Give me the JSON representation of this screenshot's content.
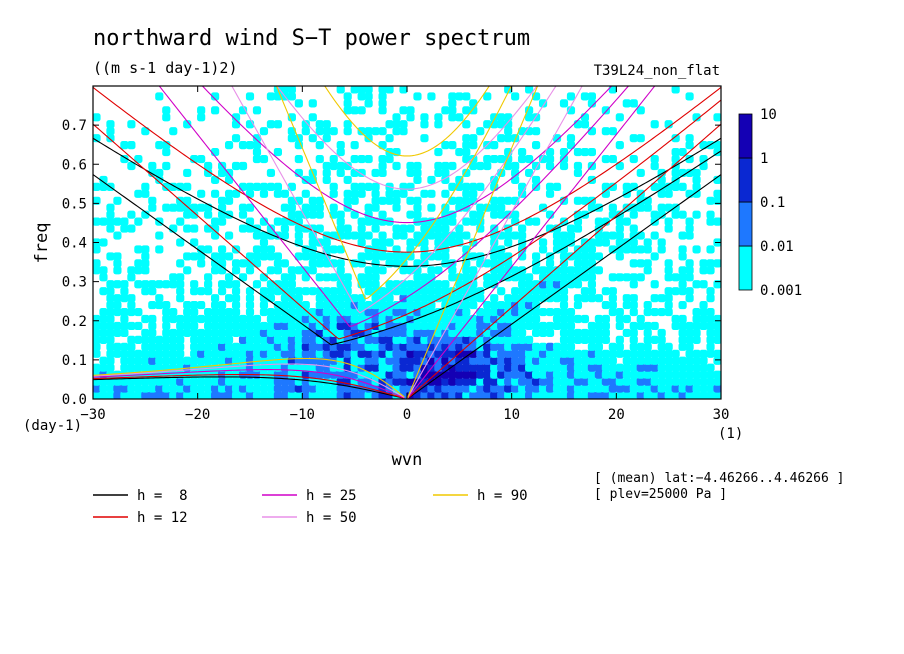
{
  "chart_data": {
    "type": "heatmap",
    "title": "northward wind S−T power spectrum",
    "units": "((m s-1 day-1)2)",
    "experiment": "T39L24_non_flat",
    "xlabel": "wvn",
    "ylabel": "freq",
    "x_unit": "(1)",
    "y_unit": "(day-1)",
    "xlim": [
      -30,
      30
    ],
    "ylim": [
      0,
      0.8
    ],
    "x_ticks": [
      {
        "v": -30,
        "t": "−30"
      },
      {
        "v": -20,
        "t": "−20"
      },
      {
        "v": -10,
        "t": "−10"
      },
      {
        "v": 0,
        "t": "0"
      },
      {
        "v": 10,
        "t": "10"
      },
      {
        "v": 20,
        "t": "20"
      },
      {
        "v": 30,
        "t": "30"
      }
    ],
    "y_ticks": [
      {
        "v": 0.0,
        "t": "0.0"
      },
      {
        "v": 0.1,
        "t": "0.1"
      },
      {
        "v": 0.2,
        "t": "0.2"
      },
      {
        "v": 0.3,
        "t": "0.3"
      },
      {
        "v": 0.4,
        "t": "0.4"
      },
      {
        "v": 0.5,
        "t": "0.5"
      },
      {
        "v": 0.6,
        "t": "0.6"
      },
      {
        "v": 0.7,
        "t": "0.7"
      }
    ],
    "color_levels": [
      "0.001",
      "0.01",
      "0.1",
      "1",
      "10"
    ],
    "colors": [
      "#00ffff",
      "#1e78ff",
      "#0a28d2",
      "#1400b4"
    ],
    "scale": "log",
    "meta_lines": [
      "[ (mean) lat:−4.46266..4.46266 ]",
      "[ plev=25000 Pa ]"
    ],
    "dispersion_curves": [
      {
        "name": "h =  8",
        "h": 8,
        "color": "#000000"
      },
      {
        "name": "h = 12",
        "h": 12,
        "color": "#e00000"
      },
      {
        "name": "h = 25",
        "h": 25,
        "color": "#d000c8"
      },
      {
        "name": "h = 50",
        "h": 50,
        "color": "#e890e8"
      },
      {
        "name": "h = 90",
        "h": 90,
        "color": "#f0c800"
      }
    ]
  }
}
